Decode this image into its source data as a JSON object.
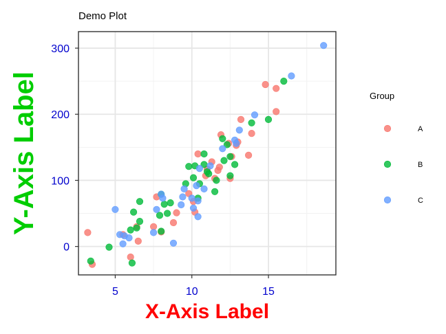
{
  "chart_data": {
    "type": "scatter",
    "title": "Demo Plot",
    "xlabel": "X-Axis Label",
    "ylabel": "Y-Axis Label",
    "xlim": [
      2.6,
      19.4
    ],
    "ylim": [
      -43,
      325
    ],
    "x_ticks": [
      5,
      10,
      15
    ],
    "y_ticks": [
      0,
      100,
      200,
      300
    ],
    "grid": true,
    "legend": {
      "title": "Group",
      "position": "right"
    },
    "series": [
      {
        "name": "A",
        "color": "#f8766d",
        "points": [
          [
            3.2,
            21
          ],
          [
            3.5,
            -27
          ],
          [
            5.5,
            18
          ],
          [
            6.0,
            -16
          ],
          [
            6.4,
            30
          ],
          [
            6.5,
            8
          ],
          [
            7.5,
            30
          ],
          [
            7.7,
            75
          ],
          [
            8.0,
            22
          ],
          [
            8.8,
            36
          ],
          [
            9.0,
            51
          ],
          [
            9.8,
            80
          ],
          [
            10.1,
            68
          ],
          [
            10.2,
            52
          ],
          [
            10.4,
            140
          ],
          [
            10.9,
            107
          ],
          [
            11.0,
            117
          ],
          [
            11.3,
            128
          ],
          [
            11.5,
            103
          ],
          [
            11.7,
            115
          ],
          [
            11.8,
            120
          ],
          [
            11.9,
            169
          ],
          [
            12.4,
            156
          ],
          [
            12.5,
            103
          ],
          [
            12.6,
            136
          ],
          [
            12.9,
            153
          ],
          [
            13.0,
            158
          ],
          [
            13.2,
            192
          ],
          [
            13.7,
            138
          ],
          [
            13.9,
            171
          ],
          [
            14.8,
            245
          ],
          [
            15.5,
            239
          ],
          [
            15.5,
            204
          ]
        ]
      },
      {
        "name": "B",
        "color": "#00ba38",
        "points": [
          [
            3.4,
            -22
          ],
          [
            4.6,
            -1
          ],
          [
            6.0,
            25
          ],
          [
            6.1,
            -25
          ],
          [
            6.2,
            52
          ],
          [
            6.4,
            28
          ],
          [
            6.6,
            38
          ],
          [
            6.6,
            68
          ],
          [
            7.9,
            47
          ],
          [
            8.0,
            23
          ],
          [
            8.0,
            79
          ],
          [
            8.2,
            64
          ],
          [
            8.4,
            50
          ],
          [
            8.6,
            66
          ],
          [
            9.6,
            95
          ],
          [
            9.8,
            121
          ],
          [
            10.1,
            104
          ],
          [
            10.2,
            122
          ],
          [
            10.4,
            73
          ],
          [
            10.5,
            95
          ],
          [
            10.8,
            140
          ],
          [
            10.8,
            124
          ],
          [
            11.0,
            113
          ],
          [
            11.1,
            110
          ],
          [
            11.5,
            83
          ],
          [
            11.6,
            100
          ],
          [
            12.0,
            163
          ],
          [
            12.1,
            130
          ],
          [
            12.3,
            154
          ],
          [
            12.5,
            107
          ],
          [
            12.5,
            136
          ],
          [
            12.8,
            124
          ],
          [
            15.0,
            192
          ],
          [
            16.0,
            250
          ],
          [
            13.9,
            187
          ]
        ]
      },
      {
        "name": "C",
        "color": "#619cff",
        "points": [
          [
            5.0,
            56
          ],
          [
            5.3,
            18
          ],
          [
            5.5,
            4
          ],
          [
            5.6,
            16
          ],
          [
            5.9,
            13
          ],
          [
            7.5,
            21
          ],
          [
            7.7,
            56
          ],
          [
            8.0,
            79
          ],
          [
            8.1,
            73
          ],
          [
            8.8,
            5
          ],
          [
            9.3,
            63
          ],
          [
            9.4,
            75
          ],
          [
            9.5,
            87
          ],
          [
            10.0,
            73
          ],
          [
            10.1,
            58
          ],
          [
            10.3,
            92
          ],
          [
            10.4,
            69
          ],
          [
            10.4,
            45
          ],
          [
            10.5,
            118
          ],
          [
            10.8,
            87
          ],
          [
            12.0,
            148
          ],
          [
            12.9,
            156
          ],
          [
            13.1,
            176
          ],
          [
            14.1,
            199
          ],
          [
            16.5,
            258
          ],
          [
            18.6,
            304
          ],
          [
            11.2,
            122
          ],
          [
            12.8,
            161
          ]
        ]
      }
    ]
  }
}
